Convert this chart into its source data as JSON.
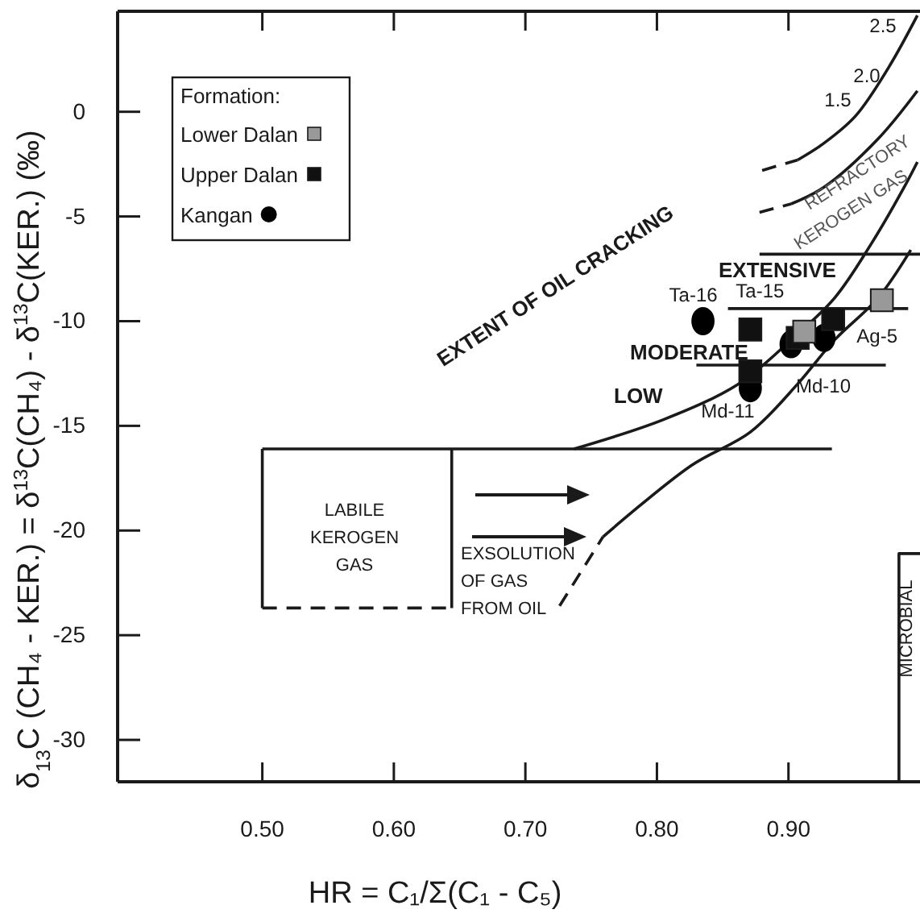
{
  "chart_data": {
    "type": "scatter",
    "xlabel": "HR = C₁/Σ(C₁ - C₅)",
    "ylabel": "δ$_{13}$C (CH₄ - KER.) = δ$^{13}$C(CH₄) - δ$^{13}$C(KER.) (‰)",
    "legend_title": "Formation:",
    "legend": "top left",
    "xlim": [
      0.39,
      1.0
    ],
    "xticks": [
      {
        "value": 0.5,
        "label": "0.50"
      },
      {
        "value": 0.6,
        "label": "0.60"
      },
      {
        "value": 0.7,
        "label": "0.70"
      },
      {
        "value": 0.8,
        "label": "0.80"
      },
      {
        "value": 0.9,
        "label": "0.90"
      }
    ],
    "ylim": [
      -32,
      4.8
    ],
    "yticks": [
      0,
      -5,
      -10,
      -15,
      -20,
      -25,
      -30
    ],
    "series": [
      {
        "name": "Lower Dalan",
        "marker": "square",
        "color": "#999999",
        "x": [
          0.912,
          0.971
        ],
        "values": [
          -10.5,
          -9.0
        ]
      },
      {
        "name": "Upper Dalan",
        "marker": "square",
        "color": "#111111",
        "x": [
          0.871,
          0.907,
          0.934,
          0.871
        ],
        "values": [
          -10.4,
          -10.8,
          -9.9,
          -12.4
        ]
      },
      {
        "name": "Kangan",
        "marker": "circle",
        "color": "#000000",
        "x": [
          0.835,
          0.871,
          0.902,
          0.927
        ],
        "values": [
          -10.0,
          -13.2,
          -11.1,
          -10.8
        ]
      },
      {
        "type": "line",
        "line_style": "solid",
        "color": "#1a1a1a",
        "x": [
          0.737,
          0.805,
          0.862,
          0.902,
          0.935,
          0.963,
          0.988,
          0.998
        ],
        "values": [
          -16.1,
          -14.7,
          -13.0,
          -10.9,
          -8.9,
          -6.3,
          -3.6,
          -2.4
        ]
      },
      {
        "type": "line",
        "line_style": "dashed",
        "color": "#1a1a1a",
        "x": [
          0.726,
          0.759
        ],
        "values": [
          -23.6,
          -20.3
        ]
      },
      {
        "type": "line",
        "line_style": "solid",
        "color": "#1a1a1a",
        "x": [
          0.759,
          0.826,
          0.871,
          0.907,
          0.935,
          0.968,
          0.993
        ],
        "values": [
          -20.3,
          -16.9,
          -15.3,
          -13.0,
          -10.9,
          -8.9,
          -6.6
        ]
      },
      {
        "type": "line",
        "line_style": "dashed",
        "color": "#1a1a1a",
        "x": [
          0.88,
          0.907
        ],
        "values": [
          -2.8,
          -2.3
        ]
      },
      {
        "type": "line",
        "line_style": "solid",
        "color": "#1a1a1a",
        "x": [
          0.907,
          0.927,
          0.951,
          0.976,
          0.998
        ],
        "values": [
          -2.3,
          -1.5,
          -0.2,
          2.1,
          4.6
        ]
      },
      {
        "type": "line",
        "line_style": "dashed",
        "color": "#1a1a1a",
        "x": [
          0.878,
          0.902
        ],
        "values": [
          -4.8,
          -4.4
        ]
      },
      {
        "type": "line",
        "line_style": "solid",
        "color": "#1a1a1a",
        "x": [
          0.902,
          0.927,
          0.968,
          0.998
        ],
        "values": [
          -4.4,
          -3.6,
          -1.3,
          1.0
        ]
      },
      {
        "type": "line",
        "line_style": "solid",
        "color": "#1a1a1a",
        "x": [
          0.878,
          1.0
        ],
        "values": [
          -6.8,
          -6.8
        ]
      },
      {
        "type": "line",
        "line_style": "solid",
        "color": "#1a1a1a",
        "x": [
          0.854,
          0.991
        ],
        "values": [
          -9.4,
          -9.4
        ]
      },
      {
        "type": "line",
        "line_style": "solid",
        "color": "#1a1a1a",
        "x": [
          0.83,
          0.974
        ],
        "values": [
          -12.1,
          -12.1
        ]
      },
      {
        "type": "line",
        "line_style": "solid",
        "color": "#1a1a1a",
        "x": [
          0.5,
          0.933
        ],
        "values": [
          -16.1,
          -16.1
        ]
      },
      {
        "type": "line",
        "line_style": "solid",
        "color": "#1a1a1a",
        "x": [
          0.5,
          0.5
        ],
        "values": [
          -16.1,
          -23.7
        ]
      },
      {
        "type": "line",
        "line_style": "solid",
        "color": "#1a1a1a",
        "x": [
          0.644,
          0.644
        ],
        "values": [
          -16.1,
          -23.7
        ]
      },
      {
        "type": "line",
        "line_style": "dashed",
        "color": "#1a1a1a",
        "x": [
          0.5,
          0.644
        ],
        "values": [
          -23.7,
          -23.7
        ]
      },
      {
        "type": "line",
        "line_style": "solid",
        "color": "#1a1a1a",
        "x": [
          0.984,
          0.984,
          1.0
        ],
        "values": [
          -32,
          -21.1,
          -21.1
        ]
      }
    ],
    "annotations": [
      "2.5",
      "2.0",
      "1.5",
      "REFRACTORY",
      "KEROGEN GAS",
      "EXTENT OF OIL CRACKING",
      "EXTENSIVE",
      "MODERATE",
      "LOW",
      {
        "text": "Ta-16",
        "x": 0.835,
        "y": -10.0
      },
      {
        "text": "Ta-15",
        "x": 0.871,
        "y": -10.4
      },
      {
        "text": "Md-10",
        "x": 0.902,
        "y": -11.1
      },
      {
        "text": "Md-11",
        "x": 0.871,
        "y": -13.2
      },
      {
        "text": "Ag-5",
        "x": 0.971,
        "y": -9.0
      },
      "LABILE\nKEROGEN\nGAS",
      "EXSOLUTION\nOF GAS\nFROM OIL",
      "MICROBIAL"
    ]
  }
}
